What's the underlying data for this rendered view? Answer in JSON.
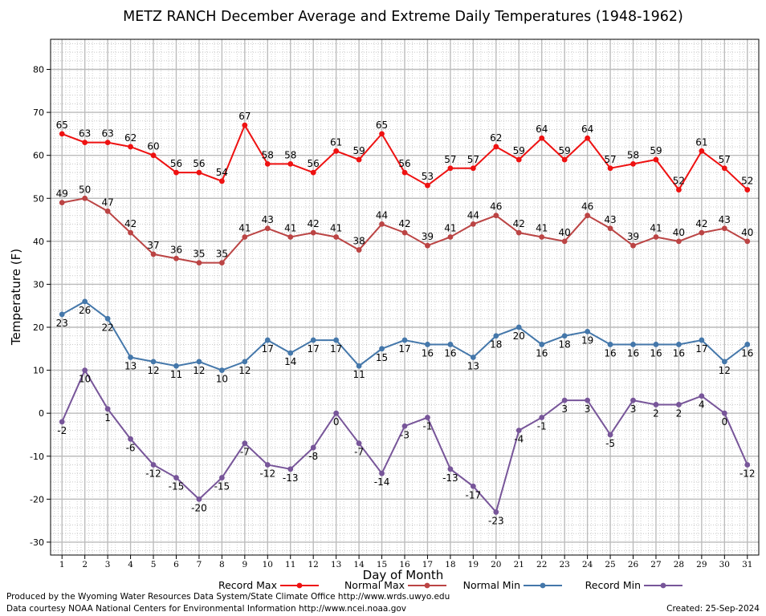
{
  "chart_data": {
    "type": "line",
    "title": "METZ RANCH December Average and Extreme Daily Temperatures (1948-1962)",
    "xlabel": "Day of Month",
    "ylabel": "Temperature (F)",
    "ylim": [
      -33,
      87
    ],
    "xlim": [
      0.5,
      31.5
    ],
    "ytick_values": [
      -30,
      -20,
      -10,
      0,
      10,
      20,
      30,
      40,
      50,
      60,
      70,
      80
    ],
    "grid": true,
    "legend_position": "bottom",
    "x": [
      1,
      2,
      3,
      4,
      5,
      6,
      7,
      8,
      9,
      10,
      11,
      12,
      13,
      14,
      15,
      16,
      17,
      18,
      19,
      20,
      21,
      22,
      23,
      24,
      25,
      26,
      27,
      28,
      29,
      30,
      31
    ],
    "series": [
      {
        "name": "Record Max",
        "color": "#ee1111",
        "label_pos": "above",
        "values": [
          65,
          63,
          63,
          62,
          60,
          56,
          56,
          54,
          67,
          58,
          58,
          56,
          61,
          59,
          65,
          56,
          53,
          57,
          57,
          62,
          59,
          64,
          59,
          64,
          57,
          58,
          59,
          52,
          61,
          57,
          52
        ]
      },
      {
        "name": "Normal Max",
        "color": "#bb4444",
        "label_pos": "above",
        "values": [
          49,
          50,
          47,
          42,
          37,
          36,
          35,
          35,
          41,
          43,
          41,
          42,
          41,
          38,
          44,
          42,
          39,
          41,
          44,
          46,
          42,
          41,
          40,
          46,
          43,
          39,
          41,
          40,
          42,
          43,
          40
        ]
      },
      {
        "name": "Normal Min",
        "color": "#4477aa",
        "label_pos": "below",
        "values": [
          23,
          26,
          22,
          13,
          12,
          11,
          12,
          10,
          12,
          17,
          14,
          17,
          17,
          11,
          15,
          17,
          16,
          16,
          13,
          18,
          20,
          16,
          18,
          19,
          16,
          16,
          16,
          16,
          17,
          12,
          16
        ]
      },
      {
        "name": "Record Min",
        "color": "#775599",
        "label_pos": "below",
        "values": [
          -2,
          10,
          1,
          -6,
          -12,
          -15,
          -20,
          -15,
          -7,
          -12,
          -13,
          -8,
          0,
          -7,
          -14,
          -3,
          -1,
          -13,
          -17,
          -23,
          -4,
          -1,
          3,
          3,
          -5,
          3,
          2,
          2,
          4,
          0,
          -12
        ]
      }
    ]
  },
  "footer": {
    "produced_by": "Produced by the Wyoming Water Resources Data System/State Climate Office http://www.wrds.uwyo.edu",
    "data_courtesy": "Data courtesy NOAA National Centers for Environmental Information http://www.ncei.noaa.gov",
    "created": "Created:  25-Sep-2024"
  }
}
